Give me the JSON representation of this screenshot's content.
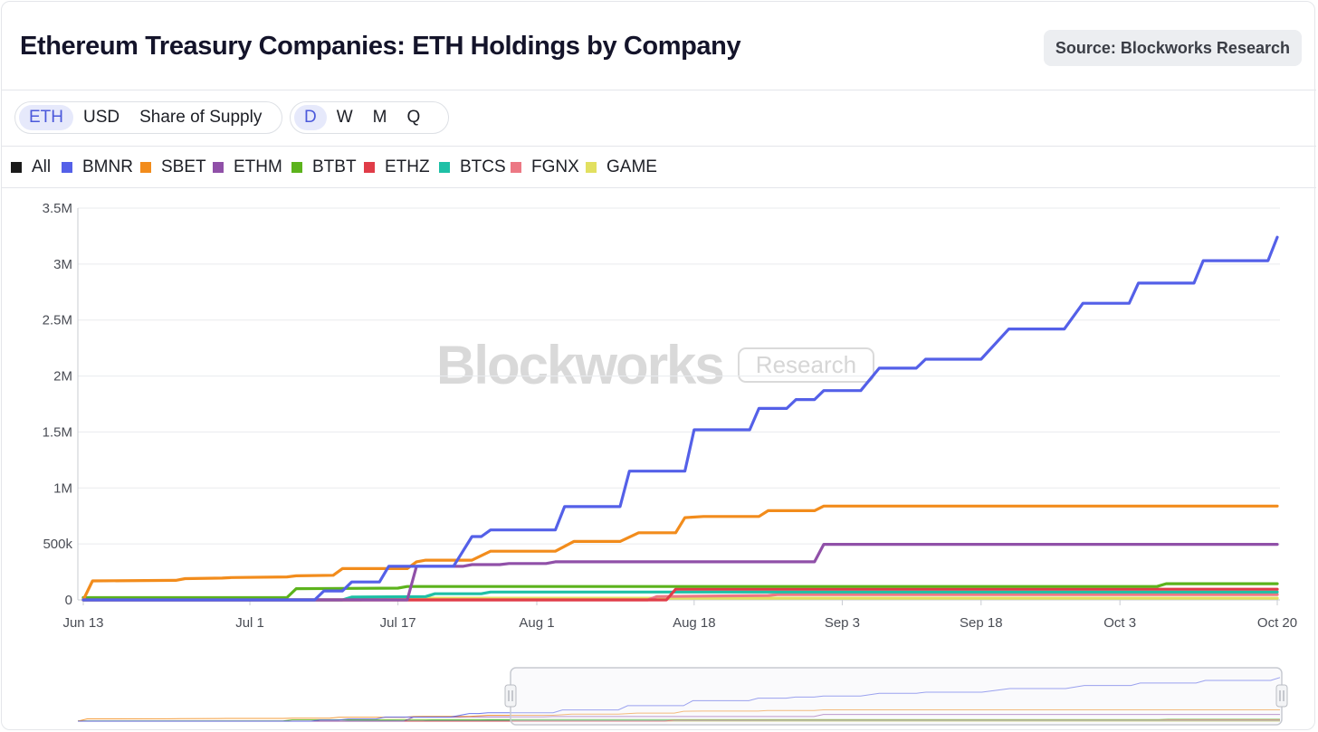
{
  "header": {
    "title": "Ethereum Treasury Companies: ETH Holdings by Company",
    "source": "Source: Blockworks Research"
  },
  "controls": {
    "units": [
      {
        "label": "ETH",
        "active": true
      },
      {
        "label": "USD",
        "active": false
      },
      {
        "label": "Share of Supply",
        "active": false
      }
    ],
    "intervals": [
      {
        "label": "D",
        "active": true
      },
      {
        "label": "W",
        "active": false
      },
      {
        "label": "M",
        "active": false
      },
      {
        "label": "Q",
        "active": false
      }
    ]
  },
  "legend": [
    {
      "label": "All",
      "color": "#1a1a1a"
    },
    {
      "label": "BMNR",
      "color": "#5460e8"
    },
    {
      "label": "SBET",
      "color": "#f28c1c"
    },
    {
      "label": "ETHM",
      "color": "#9050a8"
    },
    {
      "label": "BTBT",
      "color": "#5cb31c"
    },
    {
      "label": "ETHZ",
      "color": "#e03c48"
    },
    {
      "label": "BTCS",
      "color": "#1ec0a6"
    },
    {
      "label": "FGNX",
      "color": "#ec7884"
    },
    {
      "label": "GAME",
      "color": "#e2e060"
    }
  ],
  "watermark": {
    "logo": "Blockworks",
    "badge": "Research"
  },
  "chart_data": {
    "type": "line",
    "x_start": "2025-06-13",
    "ylim": [
      0,
      3500000
    ],
    "yticks": [
      {
        "value": 0,
        "label": "0"
      },
      {
        "value": 500000,
        "label": "500k"
      },
      {
        "value": 1000000,
        "label": "1M"
      },
      {
        "value": 1500000,
        "label": "1.5M"
      },
      {
        "value": 2000000,
        "label": "2M"
      },
      {
        "value": 2500000,
        "label": "2.5M"
      },
      {
        "value": 3000000,
        "label": "3M"
      },
      {
        "value": 3500000,
        "label": "3.5M"
      }
    ],
    "xticks": [
      {
        "x": "2025-06-13",
        "label": "Jun 13"
      },
      {
        "x": "2025-07-01",
        "label": "Jul 1"
      },
      {
        "x": "2025-07-17",
        "label": "Jul 17"
      },
      {
        "x": "2025-08-01",
        "label": "Aug 1"
      },
      {
        "x": "2025-08-18",
        "label": "Aug 18"
      },
      {
        "x": "2025-09-03",
        "label": "Sep 3"
      },
      {
        "x": "2025-09-18",
        "label": "Sep 18"
      },
      {
        "x": "2025-10-03",
        "label": "Oct 3"
      },
      {
        "x": "2025-10-20",
        "label": "Oct 20"
      }
    ],
    "grid": true,
    "navigator": true,
    "series": [
      {
        "name": "BMNR",
        "color": "#5460e8",
        "points": [
          [
            "2025-06-13",
            0
          ],
          [
            "2025-07-08",
            0
          ],
          [
            "2025-07-09",
            80000
          ],
          [
            "2025-07-10",
            80000
          ],
          [
            "2025-07-11",
            80000
          ],
          [
            "2025-07-12",
            160000
          ],
          [
            "2025-07-15",
            160000
          ],
          [
            "2025-07-16",
            300000
          ],
          [
            "2025-07-23",
            300000
          ],
          [
            "2025-07-25",
            566000
          ],
          [
            "2025-07-26",
            566000
          ],
          [
            "2025-07-27",
            625000
          ],
          [
            "2025-08-03",
            625000
          ],
          [
            "2025-08-04",
            833000
          ],
          [
            "2025-08-10",
            833000
          ],
          [
            "2025-08-11",
            1150000
          ],
          [
            "2025-08-17",
            1150000
          ],
          [
            "2025-08-18",
            1520000
          ],
          [
            "2025-08-24",
            1520000
          ],
          [
            "2025-08-25",
            1710000
          ],
          [
            "2025-08-28",
            1710000
          ],
          [
            "2025-08-29",
            1790000
          ],
          [
            "2025-08-31",
            1790000
          ],
          [
            "2025-09-01",
            1870000
          ],
          [
            "2025-09-05",
            1870000
          ],
          [
            "2025-09-07",
            2070000
          ],
          [
            "2025-09-11",
            2070000
          ],
          [
            "2025-09-12",
            2150000
          ],
          [
            "2025-09-18",
            2150000
          ],
          [
            "2025-09-21",
            2420000
          ],
          [
            "2025-09-27",
            2420000
          ],
          [
            "2025-09-29",
            2650000
          ],
          [
            "2025-10-04",
            2650000
          ],
          [
            "2025-10-05",
            2830000
          ],
          [
            "2025-10-11",
            2830000
          ],
          [
            "2025-10-12",
            3030000
          ],
          [
            "2025-10-19",
            3030000
          ],
          [
            "2025-10-20",
            3240000
          ]
        ]
      },
      {
        "name": "SBET",
        "color": "#f28c1c",
        "points": [
          [
            "2025-06-13",
            0
          ],
          [
            "2025-06-14",
            170000
          ],
          [
            "2025-06-23",
            175000
          ],
          [
            "2025-06-24",
            190000
          ],
          [
            "2025-06-28",
            195000
          ],
          [
            "2025-06-29",
            200000
          ],
          [
            "2025-07-05",
            205000
          ],
          [
            "2025-07-06",
            215000
          ],
          [
            "2025-07-10",
            220000
          ],
          [
            "2025-07-11",
            280000
          ],
          [
            "2025-07-18",
            280000
          ],
          [
            "2025-07-19",
            340000
          ],
          [
            "2025-07-20",
            355000
          ],
          [
            "2025-07-25",
            355000
          ],
          [
            "2025-07-27",
            435000
          ],
          [
            "2025-08-03",
            435000
          ],
          [
            "2025-08-05",
            522000
          ],
          [
            "2025-08-10",
            522000
          ],
          [
            "2025-08-12",
            600000
          ],
          [
            "2025-08-16",
            600000
          ],
          [
            "2025-08-17",
            735000
          ],
          [
            "2025-08-19",
            745000
          ],
          [
            "2025-08-25",
            745000
          ],
          [
            "2025-08-26",
            797000
          ],
          [
            "2025-08-31",
            797000
          ],
          [
            "2025-09-01",
            838000
          ],
          [
            "2025-10-20",
            838000
          ]
        ]
      },
      {
        "name": "ETHM",
        "color": "#9050a8",
        "points": [
          [
            "2025-06-13",
            0
          ],
          [
            "2025-07-18",
            0
          ],
          [
            "2025-07-19",
            300000
          ],
          [
            "2025-07-24",
            300000
          ],
          [
            "2025-07-25",
            315000
          ],
          [
            "2025-07-28",
            315000
          ],
          [
            "2025-07-29",
            325000
          ],
          [
            "2025-08-02",
            325000
          ],
          [
            "2025-08-03",
            340000
          ],
          [
            "2025-08-31",
            340000
          ],
          [
            "2025-09-01",
            496000
          ],
          [
            "2025-10-20",
            496000
          ]
        ]
      },
      {
        "name": "BTBT",
        "color": "#5cb31c",
        "points": [
          [
            "2025-06-13",
            20000
          ],
          [
            "2025-07-05",
            20000
          ],
          [
            "2025-07-06",
            100000
          ],
          [
            "2025-07-17",
            105000
          ],
          [
            "2025-07-18",
            120000
          ],
          [
            "2025-10-07",
            120000
          ],
          [
            "2025-10-08",
            145000
          ],
          [
            "2025-10-20",
            145000
          ]
        ]
      },
      {
        "name": "ETHZ",
        "color": "#e03c48",
        "points": [
          [
            "2025-06-13",
            0
          ],
          [
            "2025-08-15",
            0
          ],
          [
            "2025-08-16",
            95000
          ],
          [
            "2025-10-20",
            95000
          ]
        ]
      },
      {
        "name": "BTCS",
        "color": "#1ec0a6",
        "points": [
          [
            "2025-06-13",
            0
          ],
          [
            "2025-07-11",
            0
          ],
          [
            "2025-07-12",
            25000
          ],
          [
            "2025-07-20",
            30000
          ],
          [
            "2025-07-21",
            55000
          ],
          [
            "2025-07-26",
            55000
          ],
          [
            "2025-07-27",
            70000
          ],
          [
            "2025-10-20",
            70000
          ]
        ]
      },
      {
        "name": "FGNX",
        "color": "#ec7884",
        "points": [
          [
            "2025-06-13",
            0
          ],
          [
            "2025-08-13",
            0
          ],
          [
            "2025-08-14",
            30000
          ],
          [
            "2025-08-26",
            40000
          ],
          [
            "2025-08-27",
            48000
          ],
          [
            "2025-10-20",
            48000
          ]
        ]
      },
      {
        "name": "GAME",
        "color": "#e2e060",
        "points": [
          [
            "2025-06-13",
            0
          ],
          [
            "2025-07-13",
            0
          ],
          [
            "2025-07-14",
            15000
          ],
          [
            "2025-10-20",
            15000
          ]
        ]
      }
    ]
  }
}
